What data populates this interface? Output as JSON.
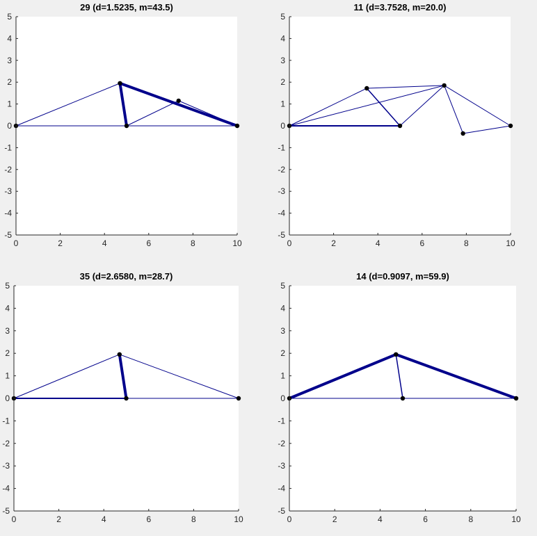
{
  "figure": {
    "background": "#f0f0f0",
    "axes_background": "#ffffff",
    "member_color": "#00008b",
    "node_color": "#000000"
  },
  "chart_data": [
    {
      "type": "scatter",
      "title": "29 (d=1.5235, m=43.5)",
      "xlim": [
        0,
        10
      ],
      "ylim": [
        -5,
        5
      ],
      "xticks": [
        0,
        2,
        4,
        6,
        8,
        10
      ],
      "yticks": [
        -5,
        -4,
        -3,
        -2,
        -1,
        0,
        1,
        2,
        3,
        4,
        5
      ],
      "grid": false,
      "nodes": [
        [
          0,
          0
        ],
        [
          4.7,
          1.95
        ],
        [
          5.0,
          0
        ],
        [
          7.35,
          1.15
        ],
        [
          10,
          0
        ]
      ],
      "members": [
        {
          "from": [
            0,
            0
          ],
          "to": [
            4.7,
            1.95
          ],
          "width": 1
        },
        {
          "from": [
            0,
            0
          ],
          "to": [
            10,
            0
          ],
          "width": 1
        },
        {
          "from": [
            4.7,
            1.95
          ],
          "to": [
            5.0,
            0
          ],
          "width": 4
        },
        {
          "from": [
            4.7,
            1.95
          ],
          "to": [
            10,
            0
          ],
          "width": 4
        },
        {
          "from": [
            5.0,
            0
          ],
          "to": [
            7.35,
            1.15
          ],
          "width": 1
        },
        {
          "from": [
            7.35,
            1.15
          ],
          "to": [
            10,
            0
          ],
          "width": 1
        }
      ]
    },
    {
      "type": "scatter",
      "title": "11 (d=3.7528, m=20.0)",
      "xlim": [
        0,
        10
      ],
      "ylim": [
        -5,
        5
      ],
      "xticks": [
        0,
        2,
        4,
        6,
        8,
        10
      ],
      "yticks": [
        -5,
        -4,
        -3,
        -2,
        -1,
        0,
        1,
        2,
        3,
        4,
        5
      ],
      "grid": false,
      "nodes": [
        [
          0,
          0
        ],
        [
          3.5,
          1.72
        ],
        [
          5.0,
          0
        ],
        [
          7.0,
          1.85
        ],
        [
          7.85,
          -0.35
        ],
        [
          10,
          0
        ]
      ],
      "members": [
        {
          "from": [
            0,
            0
          ],
          "to": [
            3.5,
            1.72
          ],
          "width": 1
        },
        {
          "from": [
            0,
            0
          ],
          "to": [
            7.0,
            1.85
          ],
          "width": 1
        },
        {
          "from": [
            0,
            0
          ],
          "to": [
            5.0,
            0
          ],
          "width": 2
        },
        {
          "from": [
            3.5,
            1.72
          ],
          "to": [
            7.0,
            1.85
          ],
          "width": 1
        },
        {
          "from": [
            3.5,
            1.72
          ],
          "to": [
            5.0,
            0
          ],
          "width": 1.5
        },
        {
          "from": [
            5.0,
            0
          ],
          "to": [
            7.0,
            1.85
          ],
          "width": 1
        },
        {
          "from": [
            7.0,
            1.85
          ],
          "to": [
            7.85,
            -0.35
          ],
          "width": 1
        },
        {
          "from": [
            7.0,
            1.85
          ],
          "to": [
            10,
            0
          ],
          "width": 1
        },
        {
          "from": [
            7.85,
            -0.35
          ],
          "to": [
            10,
            0
          ],
          "width": 1
        }
      ]
    },
    {
      "type": "scatter",
      "title": "35 (d=2.6580, m=28.7)",
      "xlim": [
        0,
        10
      ],
      "ylim": [
        -5,
        5
      ],
      "xticks": [
        0,
        2,
        4,
        6,
        8,
        10
      ],
      "yticks": [
        -5,
        -4,
        -3,
        -2,
        -1,
        0,
        1,
        2,
        3,
        4,
        5
      ],
      "grid": false,
      "nodes": [
        [
          0,
          0
        ],
        [
          4.7,
          1.95
        ],
        [
          5.0,
          0
        ],
        [
          10,
          0
        ]
      ],
      "members": [
        {
          "from": [
            0,
            0
          ],
          "to": [
            4.7,
            1.95
          ],
          "width": 1
        },
        {
          "from": [
            0,
            0
          ],
          "to": [
            5.0,
            0
          ],
          "width": 2
        },
        {
          "from": [
            5.0,
            0
          ],
          "to": [
            10,
            0
          ],
          "width": 1
        },
        {
          "from": [
            4.7,
            1.95
          ],
          "to": [
            5.0,
            0
          ],
          "width": 4
        },
        {
          "from": [
            4.7,
            1.95
          ],
          "to": [
            10,
            0
          ],
          "width": 1
        }
      ]
    },
    {
      "type": "scatter",
      "title": "14 (d=0.9097, m=59.9)",
      "xlim": [
        0,
        10
      ],
      "ylim": [
        -5,
        5
      ],
      "xticks": [
        0,
        2,
        4,
        6,
        8,
        10
      ],
      "yticks": [
        -5,
        -4,
        -3,
        -2,
        -1,
        0,
        1,
        2,
        3,
        4,
        5
      ],
      "grid": false,
      "nodes": [
        [
          0,
          0
        ],
        [
          4.7,
          1.95
        ],
        [
          5.0,
          0
        ],
        [
          10,
          0
        ]
      ],
      "members": [
        {
          "from": [
            0,
            0
          ],
          "to": [
            4.7,
            1.95
          ],
          "width": 4
        },
        {
          "from": [
            4.7,
            1.95
          ],
          "to": [
            10,
            0
          ],
          "width": 4
        },
        {
          "from": [
            0,
            0
          ],
          "to": [
            10,
            0
          ],
          "width": 1
        },
        {
          "from": [
            4.7,
            1.95
          ],
          "to": [
            5.0,
            0
          ],
          "width": 1.5
        }
      ]
    }
  ]
}
